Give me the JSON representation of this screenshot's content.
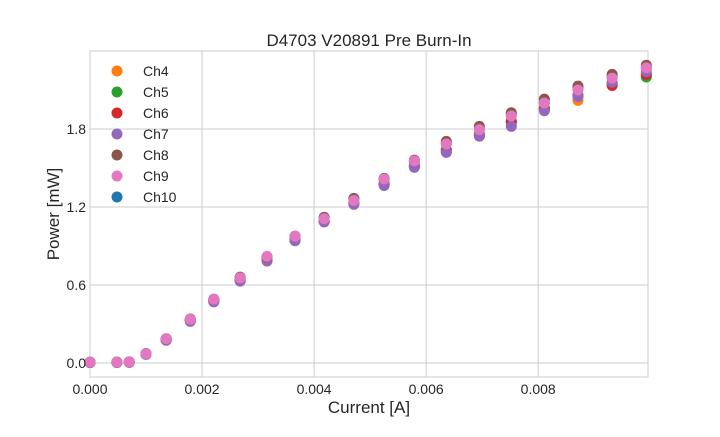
{
  "chart_data": {
    "type": "scatter",
    "title": "D4703 V20891 Pre Burn-In",
    "xlabel": "Current [A]",
    "ylabel": "Power [mW]",
    "xlim": [
      0,
      0.00996
    ],
    "ylim": [
      -0.108,
      2.4
    ],
    "xticks": [
      0,
      0.002,
      0.004,
      0.006,
      0.008
    ],
    "xtick_labels": [
      "0.000",
      "0.002",
      "0.004",
      "0.006",
      "0.008"
    ],
    "yticks": [
      0,
      0.6,
      1.2,
      1.8
    ],
    "ytick_labels": [
      "0.0",
      "0.6",
      "1.2",
      "1.8"
    ],
    "grid": true,
    "legend_placement": "top-left",
    "x": [
      0,
      0.00048,
      0.0007,
      0.001,
      0.00136,
      0.00179,
      0.00221,
      0.00268,
      0.00316,
      0.00366,
      0.00418,
      0.00471,
      0.00525,
      0.00579,
      0.00636,
      0.00695,
      0.00752,
      0.00811,
      0.00871,
      0.00932,
      0.00993
    ],
    "series": [
      {
        "name": "Ch4",
        "color": "#ff7f0e",
        "values": [
          0.004,
          0.005,
          0.006,
          0.068,
          0.178,
          0.326,
          0.476,
          0.635,
          0.785,
          0.945,
          1.09,
          1.23,
          1.38,
          1.51,
          1.625,
          1.745,
          1.845,
          1.95,
          2.02,
          2.14,
          2.21
        ]
      },
      {
        "name": "Ch5",
        "color": "#2ca02c",
        "values": [
          0.004,
          0.005,
          0.006,
          0.068,
          0.178,
          0.325,
          0.475,
          0.635,
          0.79,
          0.945,
          1.09,
          1.23,
          1.375,
          1.51,
          1.64,
          1.76,
          1.86,
          1.96,
          2.06,
          2.15,
          2.2
        ]
      },
      {
        "name": "Ch6",
        "color": "#d62728",
        "values": [
          0.004,
          0.005,
          0.006,
          0.069,
          0.179,
          0.327,
          0.477,
          0.64,
          0.79,
          0.945,
          1.09,
          1.23,
          1.375,
          1.515,
          1.635,
          1.755,
          1.855,
          1.955,
          2.055,
          2.135,
          2.22
        ]
      },
      {
        "name": "Ch7",
        "color": "#9467bd",
        "values": [
          0.003,
          0.004,
          0.005,
          0.066,
          0.175,
          0.32,
          0.47,
          0.63,
          0.785,
          0.94,
          1.085,
          1.22,
          1.365,
          1.505,
          1.62,
          1.745,
          1.82,
          1.94,
          2.05,
          2.16,
          2.24
        ]
      },
      {
        "name": "Ch8",
        "color": "#8c564b",
        "values": [
          0.005,
          0.006,
          0.008,
          0.072,
          0.184,
          0.338,
          0.49,
          0.66,
          0.815,
          0.975,
          1.12,
          1.265,
          1.42,
          1.56,
          1.705,
          1.82,
          1.925,
          2.03,
          2.13,
          2.22,
          2.29
        ]
      },
      {
        "name": "Ch9",
        "color": "#e377c2",
        "values": [
          0.006,
          0.007,
          0.008,
          0.072,
          0.186,
          0.336,
          0.49,
          0.655,
          0.82,
          0.975,
          1.11,
          1.25,
          1.415,
          1.555,
          1.685,
          1.795,
          1.9,
          2.0,
          2.1,
          2.19,
          2.27
        ]
      },
      {
        "name": "Ch10",
        "color": "#1f77b4",
        "values": [
          0.006,
          0.007,
          0.008,
          0.073,
          0.186,
          0.336,
          0.49,
          0.655,
          0.815,
          0.975,
          1.12,
          1.265,
          1.41,
          1.55,
          1.69,
          1.8,
          1.91,
          2.0,
          2.11,
          2.2,
          2.27
        ]
      }
    ]
  }
}
